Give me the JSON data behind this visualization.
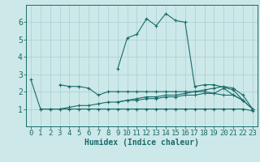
{
  "xlabel": "Humidex (Indice chaleur)",
  "background_color": "#cde8e8",
  "line_color": "#1a6b6b",
  "grid_color": "#a8d0d0",
  "ylim": [
    0,
    7
  ],
  "xlim": [
    -0.5,
    23.5
  ],
  "yticks": [
    1,
    2,
    3,
    4,
    5,
    6
  ],
  "xticks": [
    0,
    1,
    2,
    3,
    4,
    5,
    6,
    7,
    8,
    9,
    10,
    11,
    12,
    13,
    14,
    15,
    16,
    17,
    18,
    19,
    20,
    21,
    22,
    23
  ],
  "series": [
    {
      "x": [
        0,
        1,
        2,
        3,
        4,
        5,
        6,
        7,
        8,
        9,
        10,
        11,
        12,
        13,
        14,
        15,
        16,
        17,
        18,
        19,
        20,
        21,
        22,
        23
      ],
      "y": [
        2.7,
        1.0,
        1.0,
        1.0,
        1.0,
        1.0,
        1.0,
        1.0,
        1.0,
        1.0,
        1.0,
        1.0,
        1.0,
        1.0,
        1.0,
        1.0,
        1.0,
        1.0,
        1.0,
        1.0,
        1.0,
        1.0,
        1.0,
        0.9
      ]
    },
    {
      "x": [
        3,
        4,
        5,
        6,
        7,
        8,
        9,
        10,
        11,
        12,
        13,
        14,
        15,
        16,
        17,
        18,
        19,
        20,
        21,
        22,
        23
      ],
      "y": [
        2.4,
        2.3,
        2.3,
        2.2,
        1.8,
        2.0,
        2.0,
        2.0,
        2.0,
        2.0,
        2.0,
        2.0,
        2.0,
        2.0,
        2.0,
        2.1,
        2.2,
        2.3,
        2.2,
        1.8,
        1.0
      ]
    },
    {
      "x": [
        1,
        2,
        3,
        4,
        5,
        6,
        7,
        8,
        9,
        10,
        11,
        12,
        13,
        14,
        15,
        16,
        17,
        18,
        19,
        20,
        21,
        22,
        23
      ],
      "y": [
        1.0,
        1.0,
        1.0,
        1.1,
        1.2,
        1.2,
        1.3,
        1.4,
        1.4,
        1.5,
        1.5,
        1.6,
        1.6,
        1.7,
        1.7,
        1.8,
        1.8,
        1.9,
        1.9,
        1.8,
        1.8,
        1.5,
        1.0
      ]
    },
    {
      "x": [
        9,
        10,
        11,
        12,
        13,
        14,
        15,
        16,
        17,
        18,
        19,
        20,
        21,
        22,
        23
      ],
      "y": [
        1.4,
        1.5,
        1.6,
        1.7,
        1.7,
        1.8,
        1.8,
        1.9,
        2.0,
        2.0,
        1.9,
        2.2,
        1.8,
        1.5,
        1.0
      ]
    },
    {
      "x": [
        9,
        10,
        11,
        12,
        13,
        14,
        15,
        16,
        17,
        18,
        19,
        21,
        22
      ],
      "y": [
        3.3,
        5.1,
        5.3,
        6.2,
        5.8,
        6.5,
        6.1,
        6.0,
        2.3,
        2.4,
        2.4,
        2.1,
        1.5
      ]
    }
  ],
  "label_fontsize": 7,
  "tick_fontsize": 6.5
}
